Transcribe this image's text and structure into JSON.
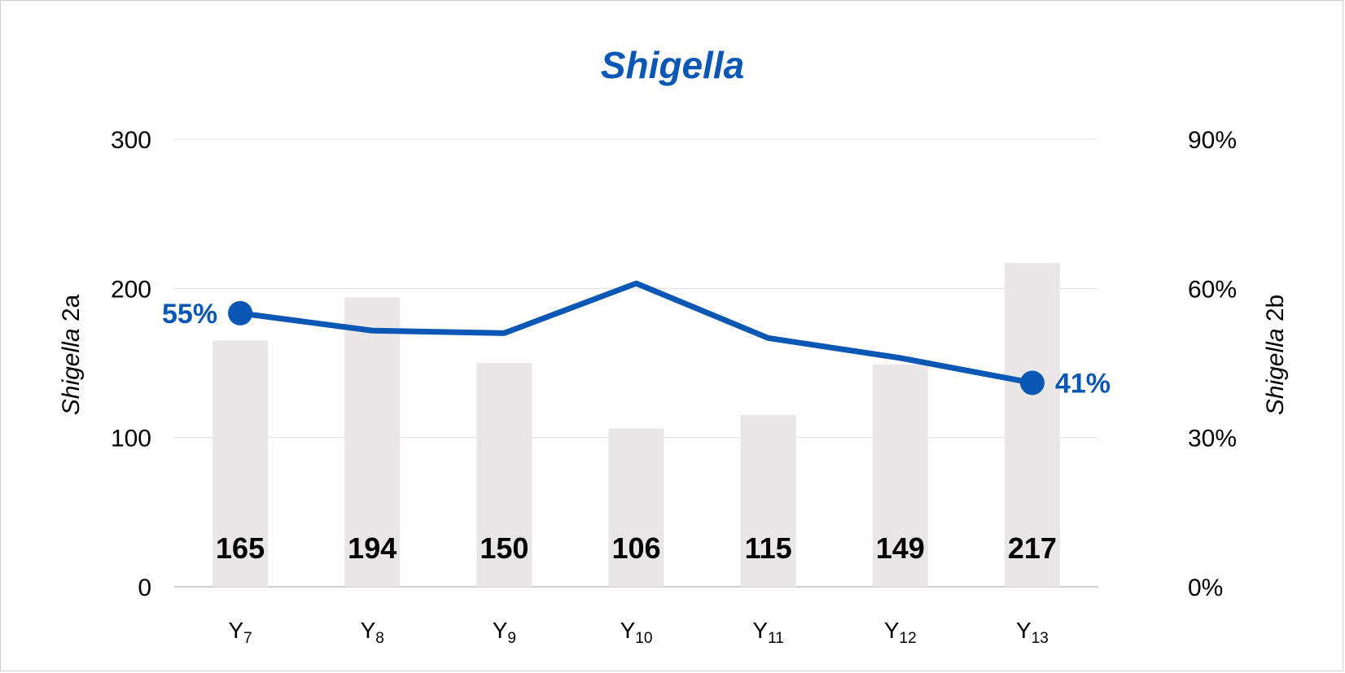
{
  "chart_data": {
    "type": "bar+line",
    "title": "Shigella",
    "categories": [
      {
        "base": "Y",
        "sub": "7"
      },
      {
        "base": "Y",
        "sub": "8"
      },
      {
        "base": "Y",
        "sub": "9"
      },
      {
        "base": "Y",
        "sub": "10"
      },
      {
        "base": "Y",
        "sub": "11"
      },
      {
        "base": "Y",
        "sub": "12"
      },
      {
        "base": "Y",
        "sub": "13"
      }
    ],
    "bars": {
      "axis": "left",
      "values": [
        165,
        194,
        150,
        106,
        115,
        149,
        217
      ],
      "labels": [
        "165",
        "194",
        "150",
        "106",
        "115",
        "149",
        "217"
      ],
      "color": "#e8e6e7"
    },
    "line": {
      "axis": "right",
      "values": [
        0.55,
        0.515,
        0.51,
        0.61,
        0.5,
        0.46,
        0.41
      ],
      "color": "#0a57b5",
      "point_labels": [
        {
          "index": 0,
          "text": "55%",
          "side": "left"
        },
        {
          "index": 6,
          "text": "41%",
          "side": "right"
        }
      ]
    },
    "y_left": {
      "label_italic": "Shigella",
      "label_rest": " 2a",
      "ylim": [
        0,
        300
      ],
      "ticks": [
        0,
        100,
        200,
        300
      ],
      "tick_labels": [
        "0",
        "100",
        "200",
        "300"
      ]
    },
    "y_right": {
      "label_italic": "Shigella",
      "label_rest": " 2b",
      "ylim": [
        0,
        0.9
      ],
      "ticks": [
        0,
        0.3,
        0.6,
        0.9
      ],
      "tick_labels": [
        "0%",
        "30%",
        "60%",
        "90%"
      ]
    },
    "grid": true,
    "legend": "none",
    "colors": {
      "accent": "#0a57b5",
      "bar": "#e8e6e7",
      "grid": "#e3e3e3",
      "baseline": "#cfcfcf"
    }
  }
}
